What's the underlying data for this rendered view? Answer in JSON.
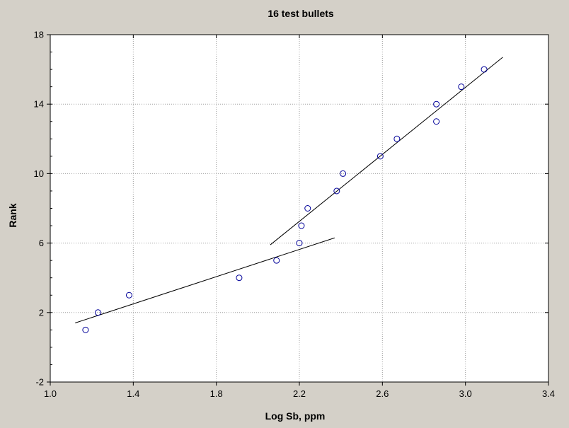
{
  "chart_data": {
    "type": "scatter",
    "title": "16 test bullets",
    "xlabel": "Log Sb, ppm",
    "ylabel": "Rank",
    "xlim": [
      1.0,
      3.4
    ],
    "ylim": [
      -2,
      18
    ],
    "xticks": [
      "1.0",
      "1.4",
      "1.8",
      "2.2",
      "2.6",
      "3.0",
      "3.4"
    ],
    "yticks": [
      "-2",
      "2",
      "6",
      "10",
      "14",
      "18"
    ],
    "grid": true,
    "points": [
      {
        "x": 1.17,
        "y": 1
      },
      {
        "x": 1.23,
        "y": 2
      },
      {
        "x": 1.38,
        "y": 3
      },
      {
        "x": 1.91,
        "y": 4
      },
      {
        "x": 2.09,
        "y": 5
      },
      {
        "x": 2.2,
        "y": 6
      },
      {
        "x": 2.21,
        "y": 7
      },
      {
        "x": 2.24,
        "y": 8
      },
      {
        "x": 2.38,
        "y": 9
      },
      {
        "x": 2.41,
        "y": 10
      },
      {
        "x": 2.59,
        "y": 11
      },
      {
        "x": 2.67,
        "y": 12
      },
      {
        "x": 2.86,
        "y": 13
      },
      {
        "x": 2.86,
        "y": 14
      },
      {
        "x": 2.98,
        "y": 15
      },
      {
        "x": 3.09,
        "y": 16
      }
    ],
    "fit_lines": [
      {
        "x": [
          1.12,
          2.37
        ],
        "y": [
          1.4,
          6.3
        ]
      },
      {
        "x": [
          2.06,
          3.18
        ],
        "y": [
          5.9,
          16.7
        ]
      }
    ],
    "colors": {
      "background": "#d4d0c8",
      "plot_area": "#ffffff",
      "marker": "#000099",
      "line": "#000000",
      "grid": "#a0a0a0"
    }
  }
}
